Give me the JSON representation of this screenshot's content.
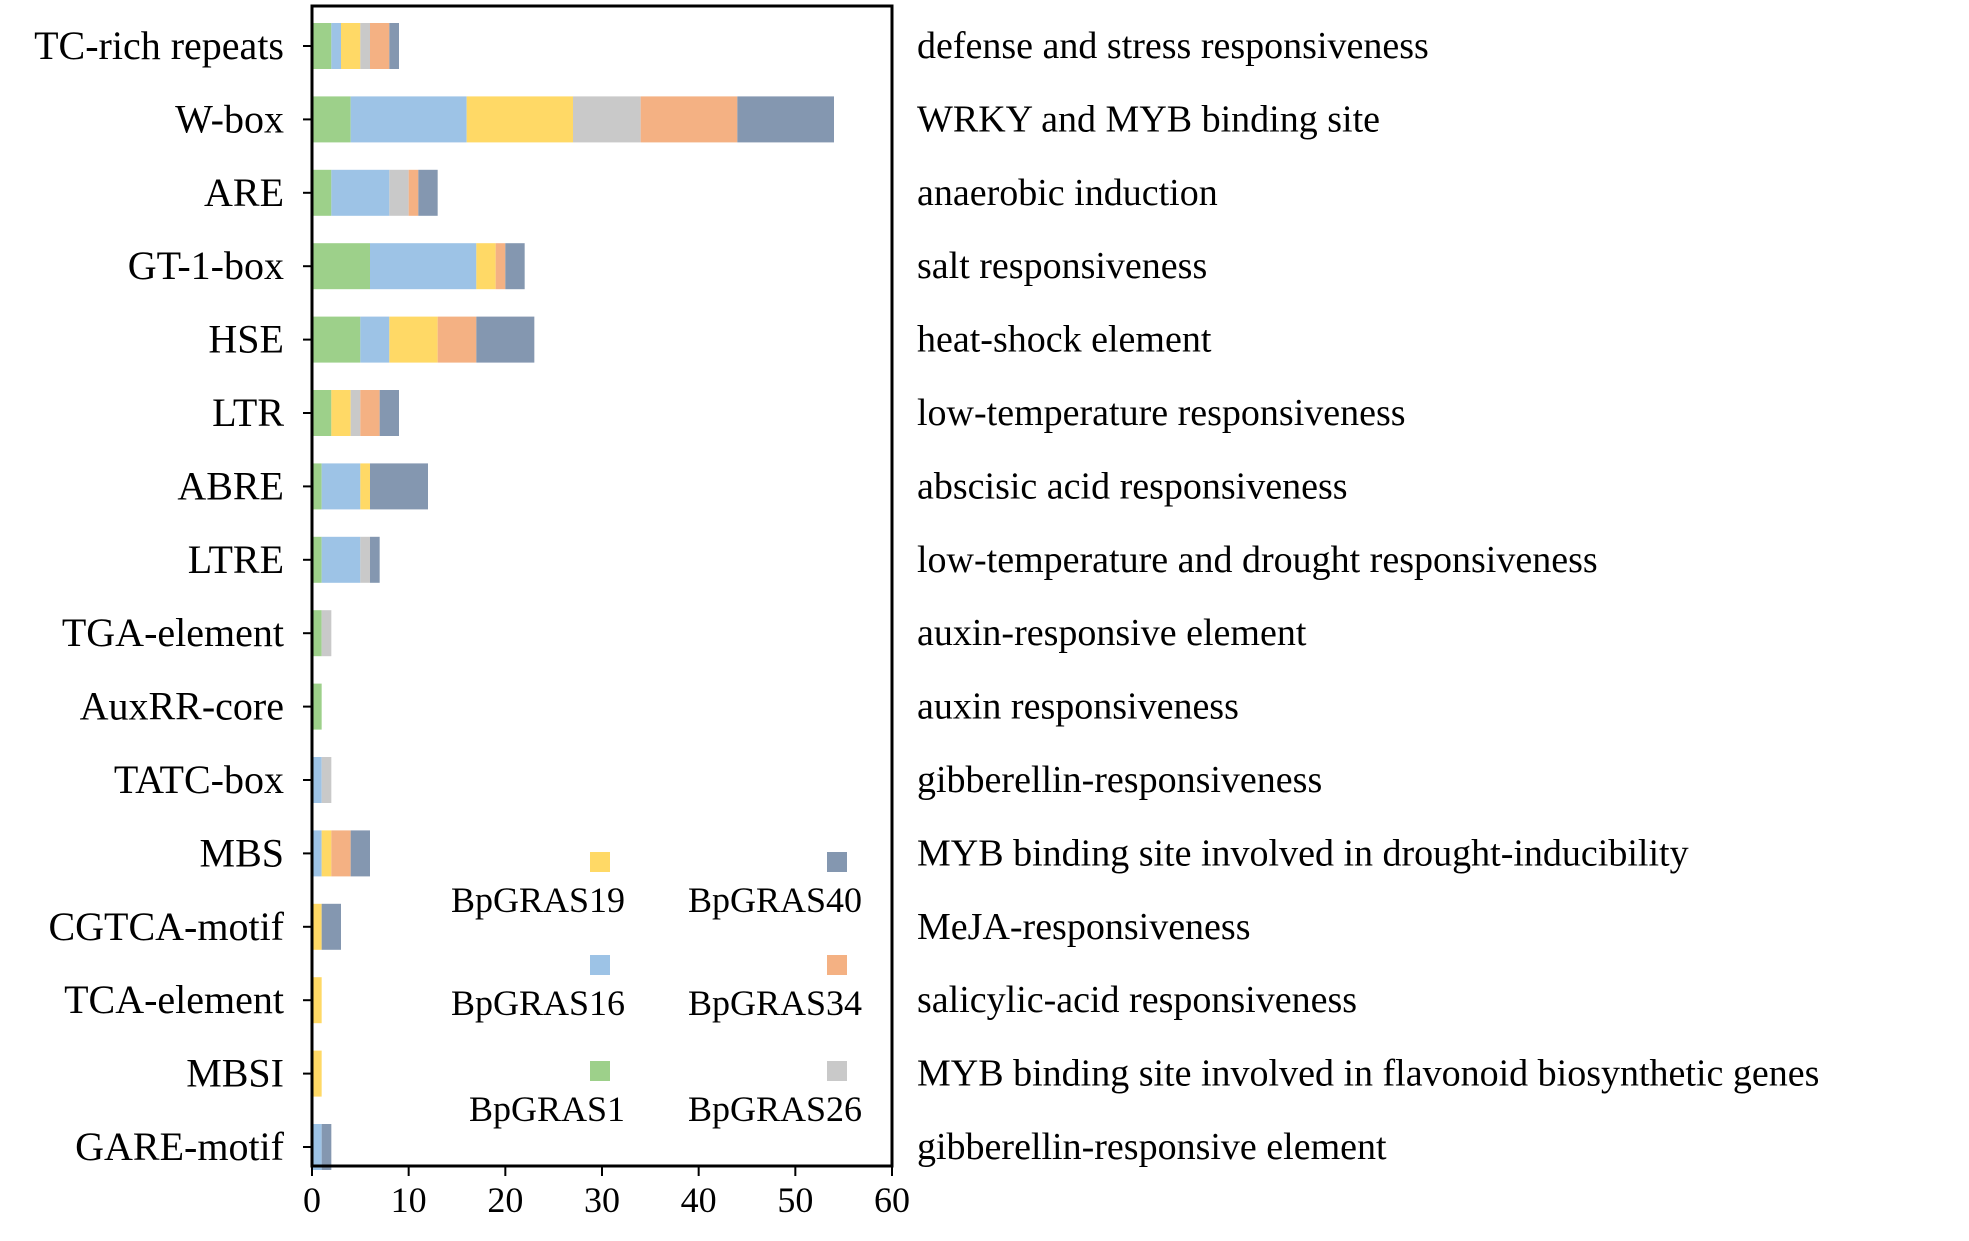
{
  "chart_data": {
    "type": "bar",
    "orientation": "horizontal",
    "stacked": true,
    "title": "",
    "xlabel": "",
    "ylabel": "",
    "xlim": [
      0,
      60
    ],
    "xticks": [
      0,
      10,
      20,
      30,
      40,
      50,
      60
    ],
    "grid": false,
    "legend_position": "inside-bottom-right",
    "categories": [
      "TC-rich repeats",
      "W-box",
      "ARE",
      "GT-1-box",
      "HSE",
      "LTR",
      "ABRE",
      "LTRE",
      "TGA-element",
      "AuxRR-core",
      "TATC-box",
      "MBS",
      "CGTCA-motif",
      "TCA-element",
      "MBSI",
      "GARE-motif"
    ],
    "descriptions": [
      "defense and stress responsiveness",
      "WRKY and MYB binding site",
      "anaerobic induction",
      "salt responsiveness",
      "heat-shock element",
      "low-temperature responsiveness",
      "abscisic acid responsiveness",
      "low-temperature and drought responsiveness",
      "auxin-responsive element",
      "auxin responsiveness",
      "gibberellin-responsiveness",
      "MYB binding site involved in drought-inducibility",
      "MeJA-responsiveness",
      "salicylic-acid responsiveness",
      "MYB binding site involved in flavonoid biosynthetic genes",
      "gibberellin-responsive element"
    ],
    "series": [
      {
        "name": "BpGRAS1",
        "color": "#9dd08a",
        "values": [
          2,
          4,
          2,
          6,
          5,
          2,
          1,
          1,
          1,
          1,
          0,
          0,
          0,
          0,
          0,
          0
        ]
      },
      {
        "name": "BpGRAS16",
        "color": "#9dc3e6",
        "values": [
          1,
          12,
          6,
          11,
          3,
          0,
          4,
          4,
          0,
          0,
          1,
          1,
          0,
          0,
          0,
          1
        ]
      },
      {
        "name": "BpGRAS19",
        "color": "#ffd966",
        "values": [
          2,
          11,
          0,
          2,
          5,
          2,
          1,
          0,
          0,
          0,
          0,
          1,
          1,
          1,
          1,
          0
        ]
      },
      {
        "name": "BpGRAS26",
        "color": "#c9c9c9",
        "values": [
          1,
          7,
          2,
          0,
          0,
          1,
          0,
          1,
          1,
          0,
          1,
          0,
          0,
          0,
          0,
          0
        ]
      },
      {
        "name": "BpGRAS34",
        "color": "#f4b183",
        "values": [
          2,
          10,
          1,
          1,
          4,
          2,
          0,
          0,
          0,
          0,
          0,
          2,
          0,
          0,
          0,
          0
        ]
      },
      {
        "name": "BpGRAS40",
        "color": "#8497b0",
        "values": [
          1,
          10,
          2,
          2,
          6,
          2,
          6,
          1,
          0,
          0,
          0,
          2,
          2,
          0,
          0,
          1
        ]
      }
    ],
    "legend_order": [
      "BpGRAS19",
      "BpGRAS40",
      "BpGRAS16",
      "BpGRAS34",
      "BpGRAS1",
      "BpGRAS26"
    ]
  }
}
